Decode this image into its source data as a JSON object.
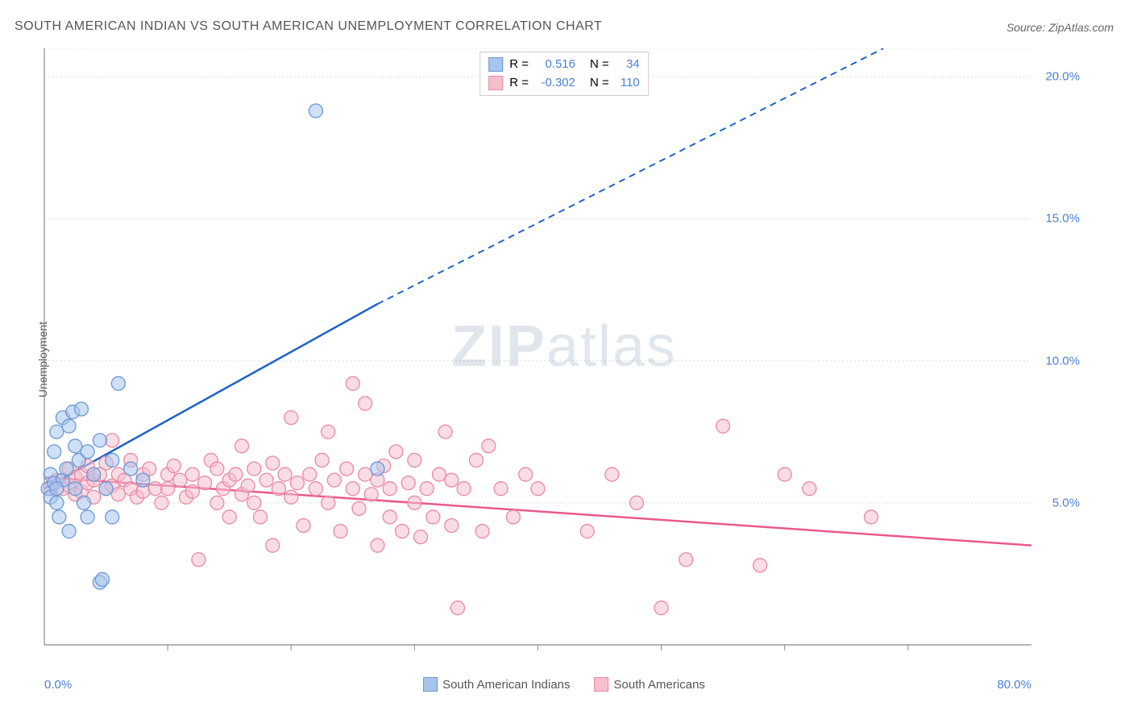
{
  "title": "SOUTH AMERICAN INDIAN VS SOUTH AMERICAN UNEMPLOYMENT CORRELATION CHART",
  "source": "Source: ZipAtlas.com",
  "ylabel": "Unemployment",
  "watermark_a": "ZIP",
  "watermark_b": "atlas",
  "colors": {
    "blue_fill": "#a7c5ed",
    "blue_stroke": "#6b98d6",
    "blue_line": "#1e62c9",
    "pink_fill": "#f5c0ce",
    "pink_stroke": "#e88aa3",
    "pink_line": "#e85a8a",
    "grid": "#dddddd",
    "axis": "#888888",
    "tick_text": "#4a7fd6"
  },
  "chart": {
    "type": "scatter",
    "xlim": [
      0,
      80
    ],
    "ylim": [
      0,
      21
    ],
    "x_ticks_major": [
      0,
      80
    ],
    "x_ticks_minor": [
      10,
      20,
      30,
      40,
      50,
      60,
      70
    ],
    "y_ticks": [
      5,
      10,
      15,
      20
    ],
    "x_tick_labels": {
      "0": "0.0%",
      "80": "80.0%"
    },
    "y_tick_labels": {
      "5": "5.0%",
      "10": "10.0%",
      "15": "15.0%",
      "20": "20.0%"
    },
    "marker_radius": 8.5,
    "marker_opacity": 0.55
  },
  "legend_top": {
    "series1": {
      "R_label": "R =",
      "R_val": "0.516",
      "N_label": "N =",
      "N_val": "34"
    },
    "series2": {
      "R_label": "R =",
      "R_val": "-0.302",
      "N_label": "N =",
      "N_val": "110"
    }
  },
  "legend_bottom": {
    "series1": "South American Indians",
    "series2": "South Americans"
  },
  "trend_lines": {
    "blue": {
      "x1": 0,
      "y1": 5.5,
      "x2_solid": 27,
      "y2_solid": 12.0,
      "x2_dash": 68,
      "y2_dash": 21.0
    },
    "pink": {
      "x1": 0,
      "y1": 5.9,
      "x2": 80,
      "y2": 3.5
    }
  },
  "series1_points": [
    [
      0.3,
      5.5
    ],
    [
      0.5,
      6.0
    ],
    [
      0.5,
      5.2
    ],
    [
      0.8,
      5.7
    ],
    [
      0.8,
      6.8
    ],
    [
      1.0,
      5.0
    ],
    [
      1.0,
      7.5
    ],
    [
      1.2,
      4.5
    ],
    [
      1.5,
      5.8
    ],
    [
      1.5,
      8.0
    ],
    [
      1.8,
      6.2
    ],
    [
      2.0,
      7.7
    ],
    [
      2.0,
      4.0
    ],
    [
      2.3,
      8.2
    ],
    [
      2.5,
      5.5
    ],
    [
      2.5,
      7.0
    ],
    [
      2.8,
      6.5
    ],
    [
      3.0,
      8.3
    ],
    [
      3.2,
      5.0
    ],
    [
      3.5,
      6.8
    ],
    [
      3.5,
      4.5
    ],
    [
      4.0,
      6.0
    ],
    [
      4.5,
      7.2
    ],
    [
      4.5,
      2.2
    ],
    [
      4.7,
      2.3
    ],
    [
      5.0,
      5.5
    ],
    [
      5.5,
      4.5
    ],
    [
      5.5,
      6.5
    ],
    [
      6.0,
      9.2
    ],
    [
      7.0,
      6.2
    ],
    [
      8.0,
      5.8
    ],
    [
      22.0,
      18.8
    ],
    [
      27.0,
      6.2
    ],
    [
      1.0,
      5.5
    ]
  ],
  "series2_points": [
    [
      0.5,
      5.5
    ],
    [
      1.0,
      5.8
    ],
    [
      1.5,
      5.5
    ],
    [
      2.0,
      5.6
    ],
    [
      2.0,
      6.2
    ],
    [
      2.5,
      5.3
    ],
    [
      2.5,
      5.9
    ],
    [
      3.0,
      5.4
    ],
    [
      3.0,
      6.0
    ],
    [
      3.5,
      5.7
    ],
    [
      3.5,
      6.3
    ],
    [
      4.0,
      5.8
    ],
    [
      4.0,
      5.2
    ],
    [
      4.5,
      6.0
    ],
    [
      5.0,
      5.5
    ],
    [
      5.0,
      6.4
    ],
    [
      5.5,
      5.6
    ],
    [
      5.5,
      7.2
    ],
    [
      6.0,
      5.3
    ],
    [
      6.0,
      6.0
    ],
    [
      6.5,
      5.8
    ],
    [
      7.0,
      5.5
    ],
    [
      7.0,
      6.5
    ],
    [
      7.5,
      5.2
    ],
    [
      8.0,
      6.0
    ],
    [
      8.0,
      5.4
    ],
    [
      8.5,
      6.2
    ],
    [
      9.0,
      5.5
    ],
    [
      9.5,
      5.0
    ],
    [
      10.0,
      6.0
    ],
    [
      10.0,
      5.5
    ],
    [
      10.5,
      6.3
    ],
    [
      11.0,
      5.8
    ],
    [
      11.5,
      5.2
    ],
    [
      12.0,
      6.0
    ],
    [
      12.0,
      5.4
    ],
    [
      12.5,
      3.0
    ],
    [
      13.0,
      5.7
    ],
    [
      13.5,
      6.5
    ],
    [
      14.0,
      5.0
    ],
    [
      14.0,
      6.2
    ],
    [
      14.5,
      5.5
    ],
    [
      15.0,
      5.8
    ],
    [
      15.0,
      4.5
    ],
    [
      15.5,
      6.0
    ],
    [
      16.0,
      5.3
    ],
    [
      16.0,
      7.0
    ],
    [
      16.5,
      5.6
    ],
    [
      17.0,
      6.2
    ],
    [
      17.0,
      5.0
    ],
    [
      17.5,
      4.5
    ],
    [
      18.0,
      5.8
    ],
    [
      18.5,
      6.4
    ],
    [
      18.5,
      3.5
    ],
    [
      19.0,
      5.5
    ],
    [
      19.5,
      6.0
    ],
    [
      20.0,
      5.2
    ],
    [
      20.0,
      8.0
    ],
    [
      20.5,
      5.7
    ],
    [
      21.0,
      4.2
    ],
    [
      21.5,
      6.0
    ],
    [
      22.0,
      5.5
    ],
    [
      22.5,
      6.5
    ],
    [
      23.0,
      5.0
    ],
    [
      23.0,
      7.5
    ],
    [
      23.5,
      5.8
    ],
    [
      24.0,
      4.0
    ],
    [
      24.5,
      6.2
    ],
    [
      25.0,
      5.5
    ],
    [
      25.0,
      9.2
    ],
    [
      25.5,
      4.8
    ],
    [
      26.0,
      6.0
    ],
    [
      26.0,
      8.5
    ],
    [
      26.5,
      5.3
    ],
    [
      27.0,
      5.8
    ],
    [
      27.0,
      3.5
    ],
    [
      27.5,
      6.3
    ],
    [
      28.0,
      4.5
    ],
    [
      28.0,
      5.5
    ],
    [
      28.5,
      6.8
    ],
    [
      29.0,
      4.0
    ],
    [
      29.5,
      5.7
    ],
    [
      30.0,
      5.0
    ],
    [
      30.0,
      6.5
    ],
    [
      30.5,
      3.8
    ],
    [
      31.0,
      5.5
    ],
    [
      31.5,
      4.5
    ],
    [
      32.0,
      6.0
    ],
    [
      32.5,
      7.5
    ],
    [
      33.0,
      5.8
    ],
    [
      33.0,
      4.2
    ],
    [
      33.5,
      1.3
    ],
    [
      34.0,
      5.5
    ],
    [
      35.0,
      6.5
    ],
    [
      35.5,
      4.0
    ],
    [
      36.0,
      7.0
    ],
    [
      37.0,
      5.5
    ],
    [
      38.0,
      4.5
    ],
    [
      39.0,
      6.0
    ],
    [
      40.0,
      5.5
    ],
    [
      44.0,
      4.0
    ],
    [
      46.0,
      6.0
    ],
    [
      48.0,
      5.0
    ],
    [
      50.0,
      1.3
    ],
    [
      52.0,
      3.0
    ],
    [
      55.0,
      7.7
    ],
    [
      58.0,
      2.8
    ],
    [
      60.0,
      6.0
    ],
    [
      62.0,
      5.5
    ],
    [
      67.0,
      4.5
    ]
  ]
}
